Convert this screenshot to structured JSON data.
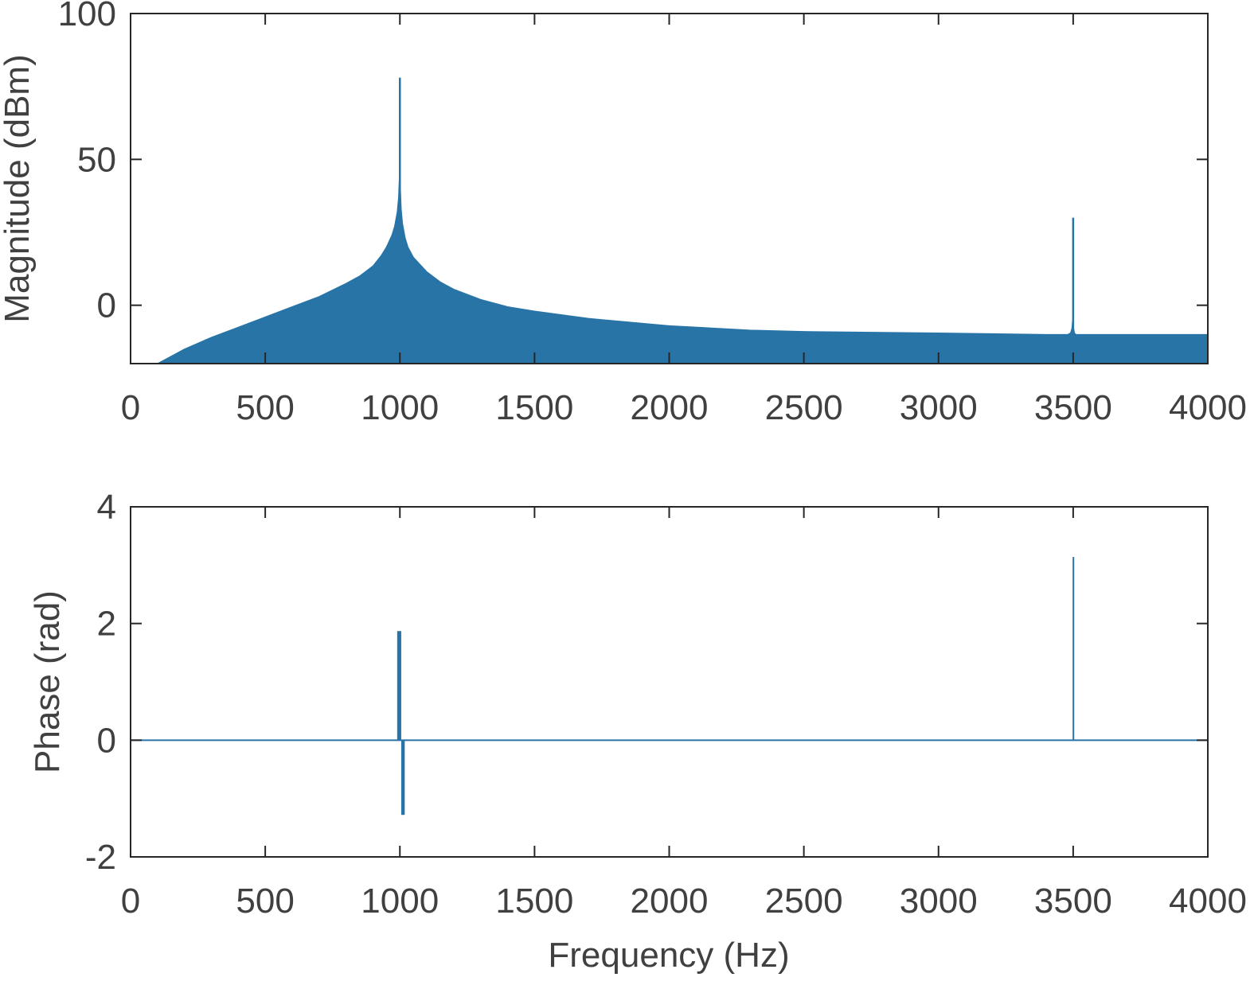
{
  "chart_data": [
    {
      "type": "area",
      "ylabel": "Magnitude (dBm)",
      "xlabel": "",
      "xlim": [
        0,
        4000
      ],
      "ylim": [
        -20,
        100
      ],
      "xticks": [
        "0",
        "500",
        "1000",
        "1500",
        "2000",
        "2500",
        "3000",
        "3500",
        "4000"
      ],
      "yticks": [
        "0",
        "50",
        "100"
      ],
      "grid": false,
      "series_color": "#2874A6",
      "envelope": {
        "x": [
          100,
          200,
          300,
          400,
          500,
          600,
          700,
          800,
          850,
          900,
          930,
          950,
          970,
          980,
          990,
          995,
          998,
          1000,
          1002,
          1005,
          1010,
          1020,
          1030,
          1050,
          1080,
          1100,
          1150,
          1200,
          1300,
          1400,
          1500,
          1700,
          2000,
          2300,
          2500,
          3000,
          3400,
          3480,
          3490,
          3495,
          3498,
          3500,
          3502,
          3505,
          3510,
          3520,
          3600,
          4000
        ],
        "y": [
          -20,
          -15,
          -11,
          -7.5,
          -4,
          -0.5,
          3,
          7.5,
          10,
          13.5,
          17,
          20,
          24,
          27,
          32,
          37,
          44,
          47,
          40,
          33,
          28,
          23,
          20,
          16.5,
          13.5,
          11.5,
          8,
          5.5,
          2,
          -0.5,
          -2,
          -4.5,
          -7,
          -8.5,
          -9,
          -9.5,
          -10,
          -10,
          -9.5,
          -8,
          -5,
          -6,
          -8,
          -9.5,
          -10,
          -10,
          -10,
          -10
        ]
      },
      "spikes": [
        {
          "x": 1000,
          "y": 78
        },
        {
          "x": 3500,
          "y": 30
        }
      ]
    },
    {
      "type": "line",
      "ylabel": "Phase (rad)",
      "xlabel": "Frequency (Hz)",
      "xlim": [
        0,
        4000
      ],
      "ylim": [
        -2,
        4
      ],
      "xticks": [
        "0",
        "500",
        "1000",
        "1500",
        "2000",
        "2500",
        "3000",
        "3500",
        "4000"
      ],
      "yticks": [
        "-2",
        "0",
        "2",
        "4"
      ],
      "grid": false,
      "series_color": "#2874A6",
      "baseline": 0,
      "bars": [
        {
          "x_start": 990,
          "x_end": 1005,
          "y": 1.87
        },
        {
          "x_start": 1005,
          "x_end": 1018,
          "y": -1.28
        },
        {
          "x_start": 3498,
          "x_end": 3502,
          "y": 3.14
        }
      ]
    }
  ]
}
